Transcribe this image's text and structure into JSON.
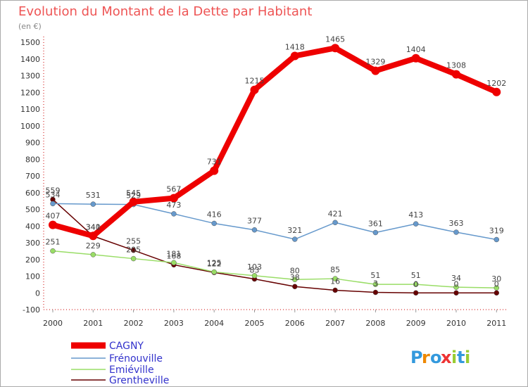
{
  "chart_data": {
    "type": "line",
    "title": "Evolution du Montant de la Dette par Habitant",
    "subtitle": "(en €)",
    "x": [
      "2000",
      "2001",
      "2002",
      "2003",
      "2004",
      "2005",
      "2006",
      "2007",
      "2008",
      "2009",
      "2010",
      "2011"
    ],
    "y_ticks": [
      "-100",
      "0",
      "100",
      "200",
      "300",
      "400",
      "500",
      "600",
      "700",
      "800",
      "900",
      "1000",
      "1100",
      "1200",
      "1300",
      "1400",
      "1500"
    ],
    "ylim": [
      -100,
      1500
    ],
    "grid": false,
    "legend_position": "bottom-left",
    "series": [
      {
        "name": "CAGNY",
        "color": "#ee0000",
        "values": [
          407,
          341,
          545,
          567,
          731,
          1215,
          1418,
          1465,
          1329,
          1404,
          1308,
          1202
        ],
        "labels": [
          "407",
          "341",
          "545",
          "567",
          "731",
          "1215",
          "1418",
          "1465",
          "1329",
          "1404",
          "1308",
          "1202"
        ]
      },
      {
        "name": "Frénouville",
        "color": "#6699cc",
        "values": [
          534,
          531,
          529,
          473,
          416,
          377,
          321,
          421,
          361,
          413,
          363,
          319
        ],
        "labels": [
          "534",
          "531",
          "529",
          "473",
          "416",
          "377",
          "321",
          "421",
          "361",
          "413",
          "363",
          "319"
        ]
      },
      {
        "name": "Emiéville",
        "color": "#99dd66",
        "values": [
          251,
          229,
          205,
          181,
          125,
          103,
          80,
          85,
          51,
          51,
          34,
          30
        ],
        "labels": [
          "251",
          "229",
          "205",
          "181",
          "125",
          "103",
          "80",
          "85",
          "51",
          "51",
          "34",
          "30"
        ]
      },
      {
        "name": "Grentheville",
        "color": "#660000",
        "values": [
          559,
          340,
          255,
          168,
          122,
          83,
          38,
          16,
          3,
          0,
          0,
          0
        ],
        "labels": [
          "559",
          "340",
          "255",
          "168",
          "122",
          "83",
          "38",
          "16",
          "3",
          "0",
          "0",
          "0"
        ]
      }
    ]
  },
  "logo": {
    "text": "Proxiti",
    "letters": [
      "P",
      "r",
      "o",
      "x",
      "i",
      "t",
      "i"
    ],
    "colors": [
      "#3399dd",
      "#ee8800",
      "#3399dd",
      "#ee3333",
      "#99cc33",
      "#3399dd",
      "#99cc33"
    ]
  },
  "colors": {
    "title": "#ee5555",
    "axis_text": "#333333",
    "label_text": "#444444",
    "legend_text": "#3333cc",
    "axis_line": "#cc0000",
    "frame": "#aaaaaa"
  }
}
